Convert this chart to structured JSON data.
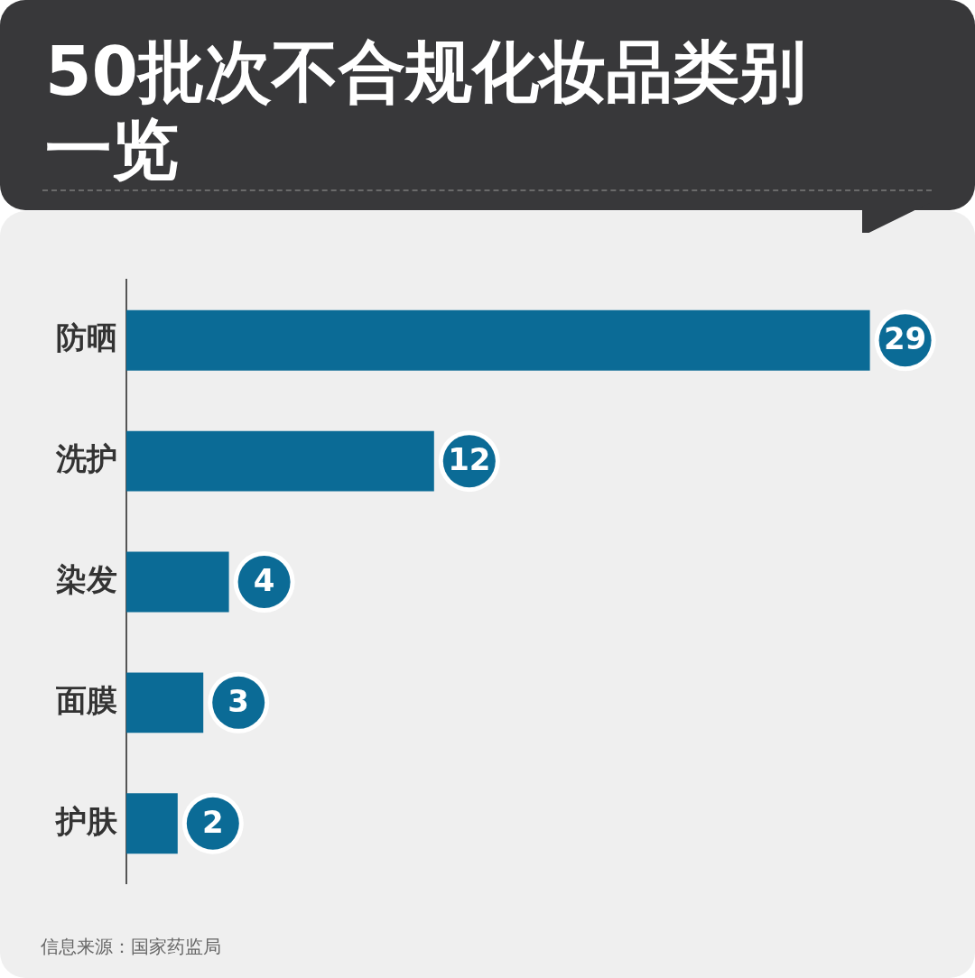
{
  "chart_data": {
    "type": "bar",
    "orientation": "horizontal",
    "title": "50批次不合规化妆品类别一览",
    "categories": [
      "防晒",
      "洗护",
      "染发",
      "面膜",
      "护肤"
    ],
    "values": [
      29,
      12,
      4,
      3,
      2
    ],
    "color": "#0b6b96",
    "data_labels": true,
    "grid": false,
    "legend": false,
    "tick_labels": "y",
    "annotations": [
      "信息来源：国家药监局"
    ]
  }
}
